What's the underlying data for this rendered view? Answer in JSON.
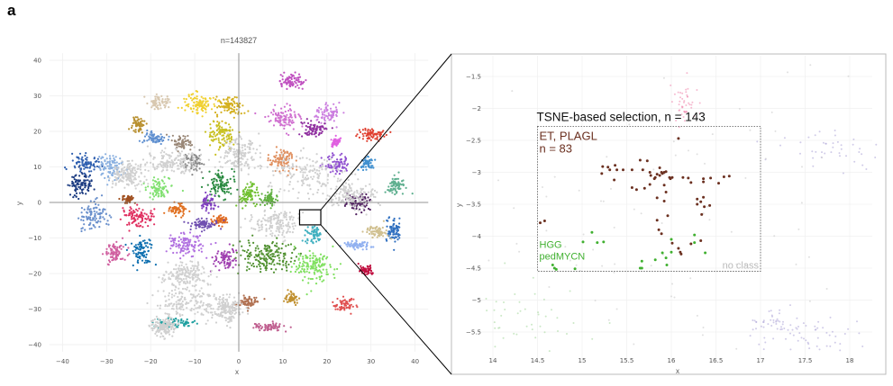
{
  "panel_label": "a",
  "chart_data": [
    {
      "type": "scatter",
      "title": "n=143827",
      "xlabel": "x",
      "ylabel": "y",
      "xlim": [
        -45,
        43
      ],
      "ylim": [
        -43,
        43
      ],
      "xticks": [
        -40,
        -30,
        -20,
        -10,
        0,
        10,
        20,
        30,
        40
      ],
      "yticks": [
        -40,
        -30,
        -20,
        -10,
        0,
        10,
        20,
        30,
        40
      ],
      "grid": true,
      "zero_lines": true,
      "zoom_region": {
        "x": [
          14,
          18
        ],
        "y": [
          -5.8,
          -1.3
        ]
      },
      "clusters": [
        {
          "center": [
            -9,
            28
          ],
          "spread": [
            3,
            2.5
          ],
          "color": "#f0d030"
        },
        {
          "center": [
            -2,
            27
          ],
          "spread": [
            2.5,
            2.5
          ],
          "color": "#d4b020"
        },
        {
          "center": [
            -4,
            19
          ],
          "spread": [
            2.5,
            3
          ],
          "color": "#c8c020"
        },
        {
          "center": [
            12,
            34
          ],
          "spread": [
            2.5,
            1.8
          ],
          "color": "#c050c0"
        },
        {
          "center": [
            10,
            24
          ],
          "spread": [
            3,
            2.5
          ],
          "color": "#d070d0"
        },
        {
          "center": [
            20,
            25
          ],
          "spread": [
            2.5,
            2
          ],
          "color": "#cc80e0"
        },
        {
          "center": [
            17,
            21
          ],
          "spread": [
            2.2,
            2
          ],
          "color": "#9030a0"
        },
        {
          "center": [
            22,
            17
          ],
          "spread": [
            1,
            1
          ],
          "color": "#e060e0"
        },
        {
          "center": [
            30,
            19
          ],
          "spread": [
            2.5,
            1.5
          ],
          "color": "#e04030"
        },
        {
          "center": [
            -19,
            18
          ],
          "spread": [
            2.2,
            1.5
          ],
          "color": "#6090d0"
        },
        {
          "center": [
            -23,
            22
          ],
          "spread": [
            1.2,
            2
          ],
          "color": "#b89030"
        },
        {
          "center": [
            -18,
            28
          ],
          "spread": [
            2,
            2
          ],
          "color": "#d8c8b0"
        },
        {
          "center": [
            -13,
            17
          ],
          "spread": [
            2,
            1.5
          ],
          "color": "#9a8878"
        },
        {
          "center": [
            -10,
            11
          ],
          "spread": [
            2,
            2
          ],
          "color": "#8a8a8a"
        },
        {
          "center": [
            10,
            12
          ],
          "spread": [
            2.5,
            2.5
          ],
          "color": "#e09060"
        },
        {
          "center": [
            22,
            11
          ],
          "spread": [
            2.5,
            2
          ],
          "color": "#9050d0"
        },
        {
          "center": [
            29,
            11
          ],
          "spread": [
            1.2,
            1.5
          ],
          "color": "#4090d0"
        },
        {
          "center": [
            36,
            5
          ],
          "spread": [
            2.2,
            2
          ],
          "color": "#60b090"
        },
        {
          "center": [
            -36,
            5
          ],
          "spread": [
            2.5,
            2.5
          ],
          "color": "#1a3a80"
        },
        {
          "center": [
            -35,
            11
          ],
          "spread": [
            2.5,
            2
          ],
          "color": "#3060b0"
        },
        {
          "center": [
            -29,
            10
          ],
          "spread": [
            2.5,
            3
          ],
          "color": "#8ab0e0"
        },
        {
          "center": [
            -33,
            -4
          ],
          "spread": [
            2.5,
            3
          ],
          "color": "#6a90cc"
        },
        {
          "center": [
            -18,
            4
          ],
          "spread": [
            2.5,
            2
          ],
          "color": "#80e070"
        },
        {
          "center": [
            2,
            2
          ],
          "spread": [
            2,
            2.5
          ],
          "color": "#70c030"
        },
        {
          "center": [
            7,
            1
          ],
          "spread": [
            1.8,
            1.5
          ],
          "color": "#60b040"
        },
        {
          "center": [
            -4,
            5
          ],
          "spread": [
            2.5,
            3
          ],
          "color": "#2a8a40"
        },
        {
          "center": [
            -23,
            -4
          ],
          "spread": [
            3,
            2.5
          ],
          "color": "#e03060"
        },
        {
          "center": [
            -25,
            1
          ],
          "spread": [
            1.5,
            0.8
          ],
          "color": "#a05020"
        },
        {
          "center": [
            -14,
            -2
          ],
          "spread": [
            2,
            1.5
          ],
          "color": "#e07020"
        },
        {
          "center": [
            -4,
            -5
          ],
          "spread": [
            1.5,
            1.2
          ],
          "color": "#e06a20"
        },
        {
          "center": [
            -7,
            0
          ],
          "spread": [
            1.3,
            2
          ],
          "color": "#8040c0"
        },
        {
          "center": [
            -8,
            -6
          ],
          "spread": [
            3,
            1.3
          ],
          "color": "#7050b0"
        },
        {
          "center": [
            -12,
            -12
          ],
          "spread": [
            3.5,
            2.5
          ],
          "color": "#b070e0"
        },
        {
          "center": [
            -3,
            -16
          ],
          "spread": [
            2,
            2.5
          ],
          "color": "#a040b0"
        },
        {
          "center": [
            -28,
            -14
          ],
          "spread": [
            2,
            2.5
          ],
          "color": "#d060a0"
        },
        {
          "center": [
            -22,
            -14
          ],
          "spread": [
            2,
            3
          ],
          "color": "#1070b0"
        },
        {
          "center": [
            6,
            -15
          ],
          "spread": [
            5,
            3.5
          ],
          "color": "#509030"
        },
        {
          "center": [
            17,
            -18
          ],
          "spread": [
            3.5,
            3.5
          ],
          "color": "#80e060"
        },
        {
          "center": [
            29,
            -19
          ],
          "spread": [
            1.3,
            1.3
          ],
          "color": "#c01040"
        },
        {
          "center": [
            27,
            0
          ],
          "spread": [
            2.5,
            2
          ],
          "color": "#502060"
        },
        {
          "center": [
            35,
            -8
          ],
          "spread": [
            1.5,
            3
          ],
          "color": "#3070c0"
        },
        {
          "center": [
            31,
            -8
          ],
          "spread": [
            2,
            1.5
          ],
          "color": "#d0c090"
        },
        {
          "center": [
            27,
            -12
          ],
          "spread": [
            2.5,
            1
          ],
          "color": "#90b0f0"
        },
        {
          "center": [
            24,
            -29
          ],
          "spread": [
            2,
            1.5
          ],
          "color": "#e05050"
        },
        {
          "center": [
            12,
            -27
          ],
          "spread": [
            1.2,
            1.5
          ],
          "color": "#c09030"
        },
        {
          "center": [
            -15,
            -34
          ],
          "spread": [
            4,
            1
          ],
          "color": "#20a0a0"
        },
        {
          "center": [
            2,
            -28
          ],
          "spread": [
            2,
            1.5
          ],
          "color": "#b07050"
        },
        {
          "center": [
            7,
            -35
          ],
          "spread": [
            3,
            1
          ],
          "color": "#c06090"
        },
        {
          "center": [
            17,
            -9
          ],
          "spread": [
            1.5,
            2
          ],
          "color": "#40b0c0"
        },
        {
          "center": [
            -15,
            11
          ],
          "spread": [
            5,
            3
          ],
          "color": "#d0d0d0"
        },
        {
          "center": [
            -12,
            -28
          ],
          "spread": [
            6,
            4
          ],
          "color": "#d0d0d0"
        },
        {
          "center": [
            15,
            8
          ],
          "spread": [
            7,
            5
          ],
          "color": "#d0d0d0"
        },
        {
          "center": [
            25,
            2
          ],
          "spread": [
            5,
            3
          ],
          "color": "#d0d0d0"
        },
        {
          "center": [
            -3,
            -30
          ],
          "spread": [
            3,
            3
          ],
          "color": "#d0d0d0"
        },
        {
          "center": [
            -12,
            -20
          ],
          "spread": [
            4,
            3
          ],
          "color": "#d0d0d0"
        },
        {
          "center": [
            0,
            14
          ],
          "spread": [
            4,
            4
          ],
          "color": "#d0d0d0"
        },
        {
          "center": [
            9,
            -6
          ],
          "spread": [
            5,
            3
          ],
          "color": "#d0d0d0"
        },
        {
          "center": [
            -25,
            8
          ],
          "spread": [
            3,
            3
          ],
          "color": "#d0d0d0"
        },
        {
          "center": [
            -17,
            -35
          ],
          "spread": [
            2,
            2
          ],
          "color": "#d0d0d0"
        }
      ]
    },
    {
      "type": "scatter",
      "xlabel": "x",
      "ylabel": "y",
      "xlim": [
        13.85,
        18.3
      ],
      "ylim": [
        -5.85,
        -1.25
      ],
      "xticks": [
        14,
        14.5,
        15,
        15.5,
        16,
        16.5,
        17,
        17.5,
        18
      ],
      "yticks": [
        -1.5,
        -2,
        -2.5,
        -3,
        -3.5,
        -4,
        -4.5,
        -5,
        -5.5
      ],
      "grid": true,
      "selection": {
        "label": "TSNE-based selection, n = 143",
        "x": [
          14.5,
          17
        ],
        "y": [
          -4.55,
          -2.28
        ],
        "no_class_label": "no class"
      },
      "series": [
        {
          "name": "ET, PLAGL",
          "count_label": "n = 83",
          "color": "#6b3020",
          "points": [
            [
              16.08,
              -2.47
            ],
            [
              15.65,
              -2.81
            ],
            [
              15.73,
              -2.82
            ],
            [
              15.23,
              -2.91
            ],
            [
              15.29,
              -2.92
            ],
            [
              15.37,
              -2.89
            ],
            [
              15.31,
              -2.96
            ],
            [
              15.39,
              -2.96
            ],
            [
              15.46,
              -2.96
            ],
            [
              15.56,
              -2.96
            ],
            [
              15.68,
              -2.96
            ],
            [
              15.76,
              -3.0
            ],
            [
              15.77,
              -3.05
            ],
            [
              15.81,
              -3.1
            ],
            [
              15.84,
              -3.03
            ],
            [
              15.87,
              -2.93
            ],
            [
              15.89,
              -3.0
            ],
            [
              15.92,
              -3.0
            ],
            [
              15.94,
              -2.99
            ],
            [
              15.87,
              -3.05
            ],
            [
              15.98,
              -3.08
            ],
            [
              16.01,
              -3.08
            ],
            [
              16.13,
              -3.08
            ],
            [
              16.19,
              -3.09
            ],
            [
              16.22,
              -3.16
            ],
            [
              16.36,
              -3.1
            ],
            [
              16.36,
              -3.15
            ],
            [
              16.44,
              -3.09
            ],
            [
              16.53,
              -3.17
            ],
            [
              16.59,
              -3.07
            ],
            [
              16.65,
              -3.06
            ],
            [
              15.22,
              -3.02
            ],
            [
              15.36,
              -3.12
            ],
            [
              15.56,
              -3.24
            ],
            [
              15.61,
              -3.27
            ],
            [
              15.7,
              -3.25
            ],
            [
              15.76,
              -3.19
            ],
            [
              15.82,
              -3.08
            ],
            [
              15.92,
              -3.2
            ],
            [
              15.94,
              -3.31
            ],
            [
              15.84,
              -3.4
            ],
            [
              15.92,
              -3.45
            ],
            [
              16.29,
              -3.42
            ],
            [
              16.33,
              -3.46
            ],
            [
              16.36,
              -3.39
            ],
            [
              16.29,
              -3.5
            ],
            [
              16.37,
              -3.54
            ],
            [
              16.43,
              -3.52
            ],
            [
              16.34,
              -3.66
            ],
            [
              15.96,
              -3.68
            ],
            [
              15.84,
              -3.75
            ],
            [
              15.86,
              -3.9
            ],
            [
              15.89,
              -3.96
            ],
            [
              16.01,
              -4.11
            ],
            [
              16.08,
              -4.19
            ],
            [
              16.1,
              -4.25
            ],
            [
              16.11,
              -4.28
            ],
            [
              16.22,
              -4.12
            ],
            [
              16.33,
              -4.07
            ],
            [
              14.53,
              -3.79
            ],
            [
              14.58,
              -3.76
            ],
            [
              15.9,
              -3.02
            ],
            [
              15.99,
              -3.1
            ]
          ]
        },
        {
          "name": "HGG\npedMYCN",
          "name_lines": [
            "HGG",
            "pedMYCN"
          ],
          "color": "#40b030",
          "points": [
            [
              15.11,
              -3.94
            ],
            [
              15.01,
              -4.09
            ],
            [
              15.17,
              -4.1
            ],
            [
              15.24,
              -4.09
            ],
            [
              16.0,
              -4.05
            ],
            [
              16.26,
              -3.98
            ],
            [
              16.26,
              -4.1
            ],
            [
              16.38,
              -4.26
            ],
            [
              15.9,
              -4.26
            ],
            [
              16.0,
              -4.25
            ],
            [
              15.94,
              -4.34
            ],
            [
              15.82,
              -4.37
            ],
            [
              15.67,
              -4.39
            ],
            [
              15.95,
              -4.45
            ],
            [
              15.65,
              -4.5
            ],
            [
              15.67,
              -4.5
            ],
            [
              14.67,
              -4.45
            ],
            [
              14.69,
              -4.5
            ],
            [
              14.71,
              -4.52
            ],
            [
              14.92,
              -4.51
            ]
          ]
        }
      ],
      "background_groups": [
        {
          "center": [
            17.8,
            -2.6
          ],
          "spread": [
            0.35,
            0.2
          ],
          "color": "#b0a8d8"
        },
        {
          "center": [
            17.7,
            -5.6
          ],
          "spread": [
            0.35,
            0.15
          ],
          "color": "#b0a8d8"
        },
        {
          "center": [
            17.2,
            -5.35
          ],
          "spread": [
            0.15,
            0.1
          ],
          "color": "#b0a8d8"
        },
        {
          "center": [
            16.15,
            -1.9
          ],
          "spread": [
            0.08,
            0.15
          ],
          "color": "#f08cb0"
        },
        {
          "center": [
            14.4,
            -5.3
          ],
          "spread": [
            0.4,
            0.3
          ],
          "color": "#a8d8a0"
        },
        {
          "center": [
            16,
            -3.7
          ],
          "spread": [
            1.8,
            1.4
          ],
          "color": "#cccccc"
        }
      ]
    }
  ]
}
